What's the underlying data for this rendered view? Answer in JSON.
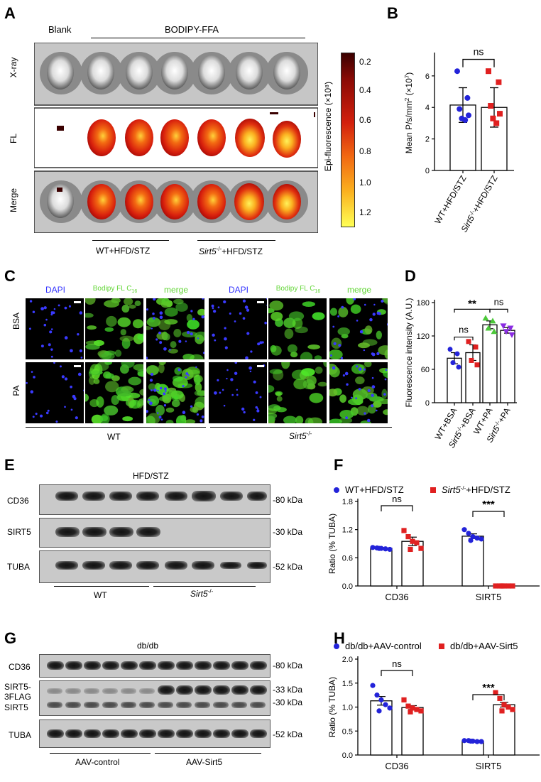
{
  "panels": [
    "A",
    "B",
    "C",
    "D",
    "E",
    "F",
    "G",
    "H"
  ],
  "panelA": {
    "top_labels": [
      "Blank",
      "BODIPY-FFA"
    ],
    "row_labels": [
      "X-ray",
      "FL",
      "Merge"
    ],
    "colorbar_label": "Epi-fluorescence (×10⁸)",
    "colorbar_ticks": [
      "0.2",
      "0.4",
      "0.6",
      "0.8",
      "1.0",
      "1.2"
    ],
    "group_wt": "WT+HFD/STZ",
    "group_ko_gene": "Sirt5",
    "group_ko_sup": "-/-",
    "group_ko_rest": "+HFD/STZ"
  },
  "panelC": {
    "col_labels": [
      "DAPI",
      "Bodipy FL C",
      "merge",
      "DAPI",
      "Bodipy FL C",
      "merge"
    ],
    "bodipy_sub": "16",
    "row_labels": [
      "BSA",
      "PA"
    ],
    "group_wt": "WT",
    "group_ko_gene": "Sirt5",
    "group_ko_sup": "-/-"
  },
  "panelE": {
    "title": "HFD/STZ",
    "row_labels": [
      "CD36",
      "SIRT5",
      "TUBA"
    ],
    "mw": [
      "-80 kDa",
      "-30 kDa",
      "-52 kDa"
    ],
    "group_wt": "WT",
    "group_ko_gene": "Sirt5",
    "group_ko_sup": "-/-"
  },
  "panelG": {
    "title": "db/db",
    "row_labels": [
      "CD36",
      "SIRT5-",
      "3FLAG",
      "SIRT5",
      "TUBA"
    ],
    "mw": [
      "-80 kDa",
      "-33 kDa",
      "-30 kDa",
      "-52 kDa"
    ],
    "group1": "AAV-control",
    "group2": "AAV-Sirt5"
  },
  "colors": {
    "blue": "#2323d9",
    "red": "#e02020",
    "green": "#4cc83a",
    "purple": "#8a2be2"
  },
  "chart_data": [
    {
      "id": "B",
      "type": "bar",
      "categories": [
        "WT+HFD/STZ",
        "Sirt5-/-+HFD/STZ"
      ],
      "cat_rich": [
        {
          "pre": "WT+HFD/STZ",
          "gene": "",
          "sup": "",
          "post": ""
        },
        {
          "pre": "",
          "gene": "Sirt5",
          "sup": "-/-",
          "post": "+HFD/STZ"
        }
      ],
      "values": [
        4.15,
        4.0
      ],
      "errors": [
        1.1,
        1.25
      ],
      "points": [
        [
          6.3,
          4.6,
          3.9,
          3.5,
          3.3,
          3.2
        ],
        [
          6.3,
          5.6,
          4.1,
          3.6,
          3.3,
          3.0
        ]
      ],
      "point_colors": [
        "#2323d9",
        "#e02020"
      ],
      "point_shapes": [
        "circle",
        "square"
      ],
      "ylabel_main": "Mean P/s/mm",
      "ylabel_sup1": "2",
      "ylabel_mid": " (×10",
      "ylabel_sup2": "7",
      "ylabel_end": ")",
      "yticks": [
        "0",
        "2",
        "4",
        "6"
      ],
      "ylim": [
        0,
        7.3
      ],
      "significance": [
        {
          "a": 0,
          "b": 1,
          "label": "ns",
          "level": 1
        }
      ]
    },
    {
      "id": "D",
      "type": "bar",
      "categories": [
        "WT+BSA",
        "Sirt5-/-+BSA",
        "WT+PA",
        "Sirt5-/-+PA"
      ],
      "cat_rich": [
        {
          "pre": "WT+BSA",
          "gene": "",
          "sup": "",
          "post": ""
        },
        {
          "pre": "",
          "gene": "Sirt5",
          "sup": "-/-",
          "post": "+BSA"
        },
        {
          "pre": "WT+PA",
          "gene": "",
          "sup": "",
          "post": ""
        },
        {
          "pre": "",
          "gene": "Sirt5",
          "sup": "-/-",
          "post": "+PA"
        }
      ],
      "values": [
        80,
        90,
        140,
        130
      ],
      "errors": [
        10,
        14,
        7,
        5
      ],
      "points": [
        [
          96,
          88,
          72,
          64
        ],
        [
          110,
          100,
          76,
          68
        ],
        [
          152,
          147,
          134,
          128
        ],
        [
          138,
          134,
          128,
          122
        ]
      ],
      "point_colors": [
        "#2323d9",
        "#e02020",
        "#4cc83a",
        "#8a2be2"
      ],
      "point_shapes": [
        "circle",
        "square",
        "triangle",
        "vtriangle"
      ],
      "ylabel": "Fluorescence intensity (A.U.)",
      "yticks": [
        "0",
        "60",
        "120",
        "180"
      ],
      "ylim": [
        0,
        180
      ],
      "significance": [
        {
          "a": 0,
          "b": 2,
          "label": "**",
          "level": 2
        },
        {
          "a": 2,
          "b": 3,
          "label": "ns",
          "level": 2
        },
        {
          "a": 0,
          "b": 1,
          "label": "ns",
          "level": 1
        }
      ]
    },
    {
      "id": "F",
      "type": "bar",
      "groups": [
        "CD36",
        "SIRT5"
      ],
      "legend": [
        {
          "pre": "WT+HFD/STZ",
          "gene": "",
          "sup": "",
          "post": "",
          "color": "#2323d9",
          "shape": "circle"
        },
        {
          "pre": "",
          "gene": "Sirt5",
          "sup": "-/-",
          "post": "+HFD/STZ",
          "color": "#e02020",
          "shape": "square"
        }
      ],
      "series": [
        {
          "values": [
            0.8,
            1.06
          ],
          "errors": [
            0.02,
            0.05
          ],
          "points": [
            [
              0.82,
              0.81,
              0.8,
              0.79,
              0.78,
              0.8
            ],
            [
              1.2,
              1.12,
              1.05,
              1.02,
              1.0,
              0.97
            ]
          ]
        },
        {
          "values": [
            0.95,
            0.0
          ],
          "errors": [
            0.09,
            0.0
          ],
          "points": [
            [
              1.18,
              1.05,
              0.95,
              0.92,
              0.8,
              0.78
            ],
            [
              0.0,
              0.0,
              0.0,
              0.0,
              0.0,
              0.0
            ]
          ]
        }
      ],
      "ylabel": "Ratio (% TUBA)",
      "yticks": [
        "0.0",
        "0.6",
        "1.2",
        "1.8"
      ],
      "ylim": [
        0,
        1.8
      ],
      "significance": [
        {
          "group": 0,
          "label": "ns"
        },
        {
          "group": 1,
          "label": "***"
        }
      ]
    },
    {
      "id": "H",
      "type": "bar",
      "groups": [
        "CD36",
        "SIRT5"
      ],
      "legend": [
        {
          "pre": "db/db+AAV-control",
          "gene": "",
          "sup": "",
          "post": "",
          "color": "#2323d9",
          "shape": "circle"
        },
        {
          "pre": "db/db+AAV-Sirt5",
          "gene": "",
          "sup": "",
          "post": "",
          "color": "#e02020",
          "shape": "square"
        }
      ],
      "series": [
        {
          "values": [
            1.13,
            0.29
          ],
          "errors": [
            0.09,
            0.01
          ],
          "points": [
            [
              1.45,
              1.25,
              1.15,
              1.05,
              0.98,
              0.92
            ],
            [
              0.3,
              0.3,
              0.29,
              0.28,
              0.28,
              0.29
            ]
          ]
        },
        {
          "values": [
            0.99,
            1.05
          ],
          "errors": [
            0.04,
            0.05
          ],
          "points": [
            [
              1.15,
              1.02,
              0.98,
              0.95,
              0.92,
              0.9
            ],
            [
              1.3,
              1.18,
              1.05,
              1.0,
              0.95,
              0.92
            ]
          ]
        }
      ],
      "ylabel": "Ratio (% TUBA)",
      "yticks": [
        "0.0",
        "0.5",
        "1.0",
        "1.5",
        "2.0"
      ],
      "ylim": [
        0,
        2.0
      ],
      "significance": [
        {
          "group": 0,
          "label": "ns"
        },
        {
          "group": 1,
          "label": "***"
        }
      ]
    }
  ]
}
